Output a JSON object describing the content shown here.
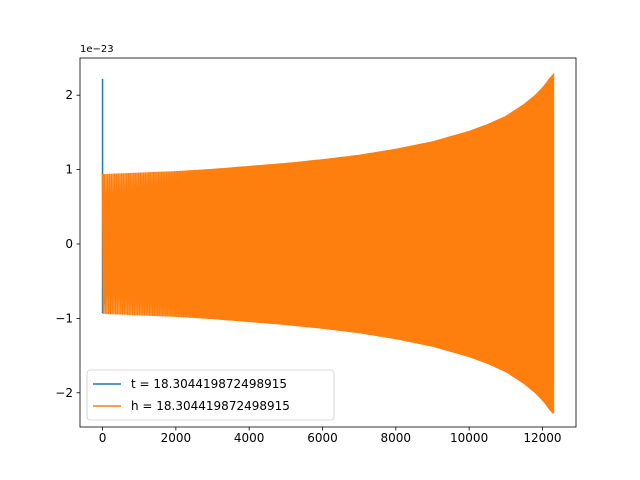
{
  "chart_data": {
    "type": "line",
    "title": "",
    "xlabel": "",
    "ylabel": "",
    "y_offset_label": "1e−23",
    "xlim": [
      -615,
      12915
    ],
    "ylim": [
      -2.46,
      2.5
    ],
    "xticks": [
      0,
      2000,
      4000,
      6000,
      8000,
      10000,
      12000
    ],
    "xtick_labels": [
      "0",
      "2000",
      "4000",
      "6000",
      "8000",
      "10000",
      "12000"
    ],
    "yticks": [
      -2,
      -1,
      0,
      1,
      2
    ],
    "ytick_labels": [
      "−2",
      "−1",
      "0",
      "1",
      "2"
    ],
    "grid": false,
    "legend_position": "lower-left",
    "series": [
      {
        "name": "t = 18.304419872498915",
        "color": "#1f77b4",
        "description_points": {
          "x": [
            0,
            0,
            0,
            200
          ],
          "y": [
            0,
            2.22,
            -0.93,
            0
          ]
        }
      },
      {
        "name": "h = 18.304419872498915",
        "color": "#ff7f0e",
        "envelope": {
          "x": [
            0,
            1000,
            2000,
            3000,
            4000,
            5000,
            6000,
            7000,
            8000,
            9000,
            10000,
            10500,
            11000,
            11500,
            11800,
            12000,
            12100,
            12200,
            12300
          ],
          "amplitude": [
            0.94,
            0.96,
            0.98,
            1.01,
            1.05,
            1.09,
            1.14,
            1.2,
            1.28,
            1.38,
            1.52,
            1.61,
            1.72,
            1.88,
            2.0,
            2.1,
            2.16,
            2.23,
            2.28
          ]
        },
        "x_end": 12300
      }
    ]
  }
}
